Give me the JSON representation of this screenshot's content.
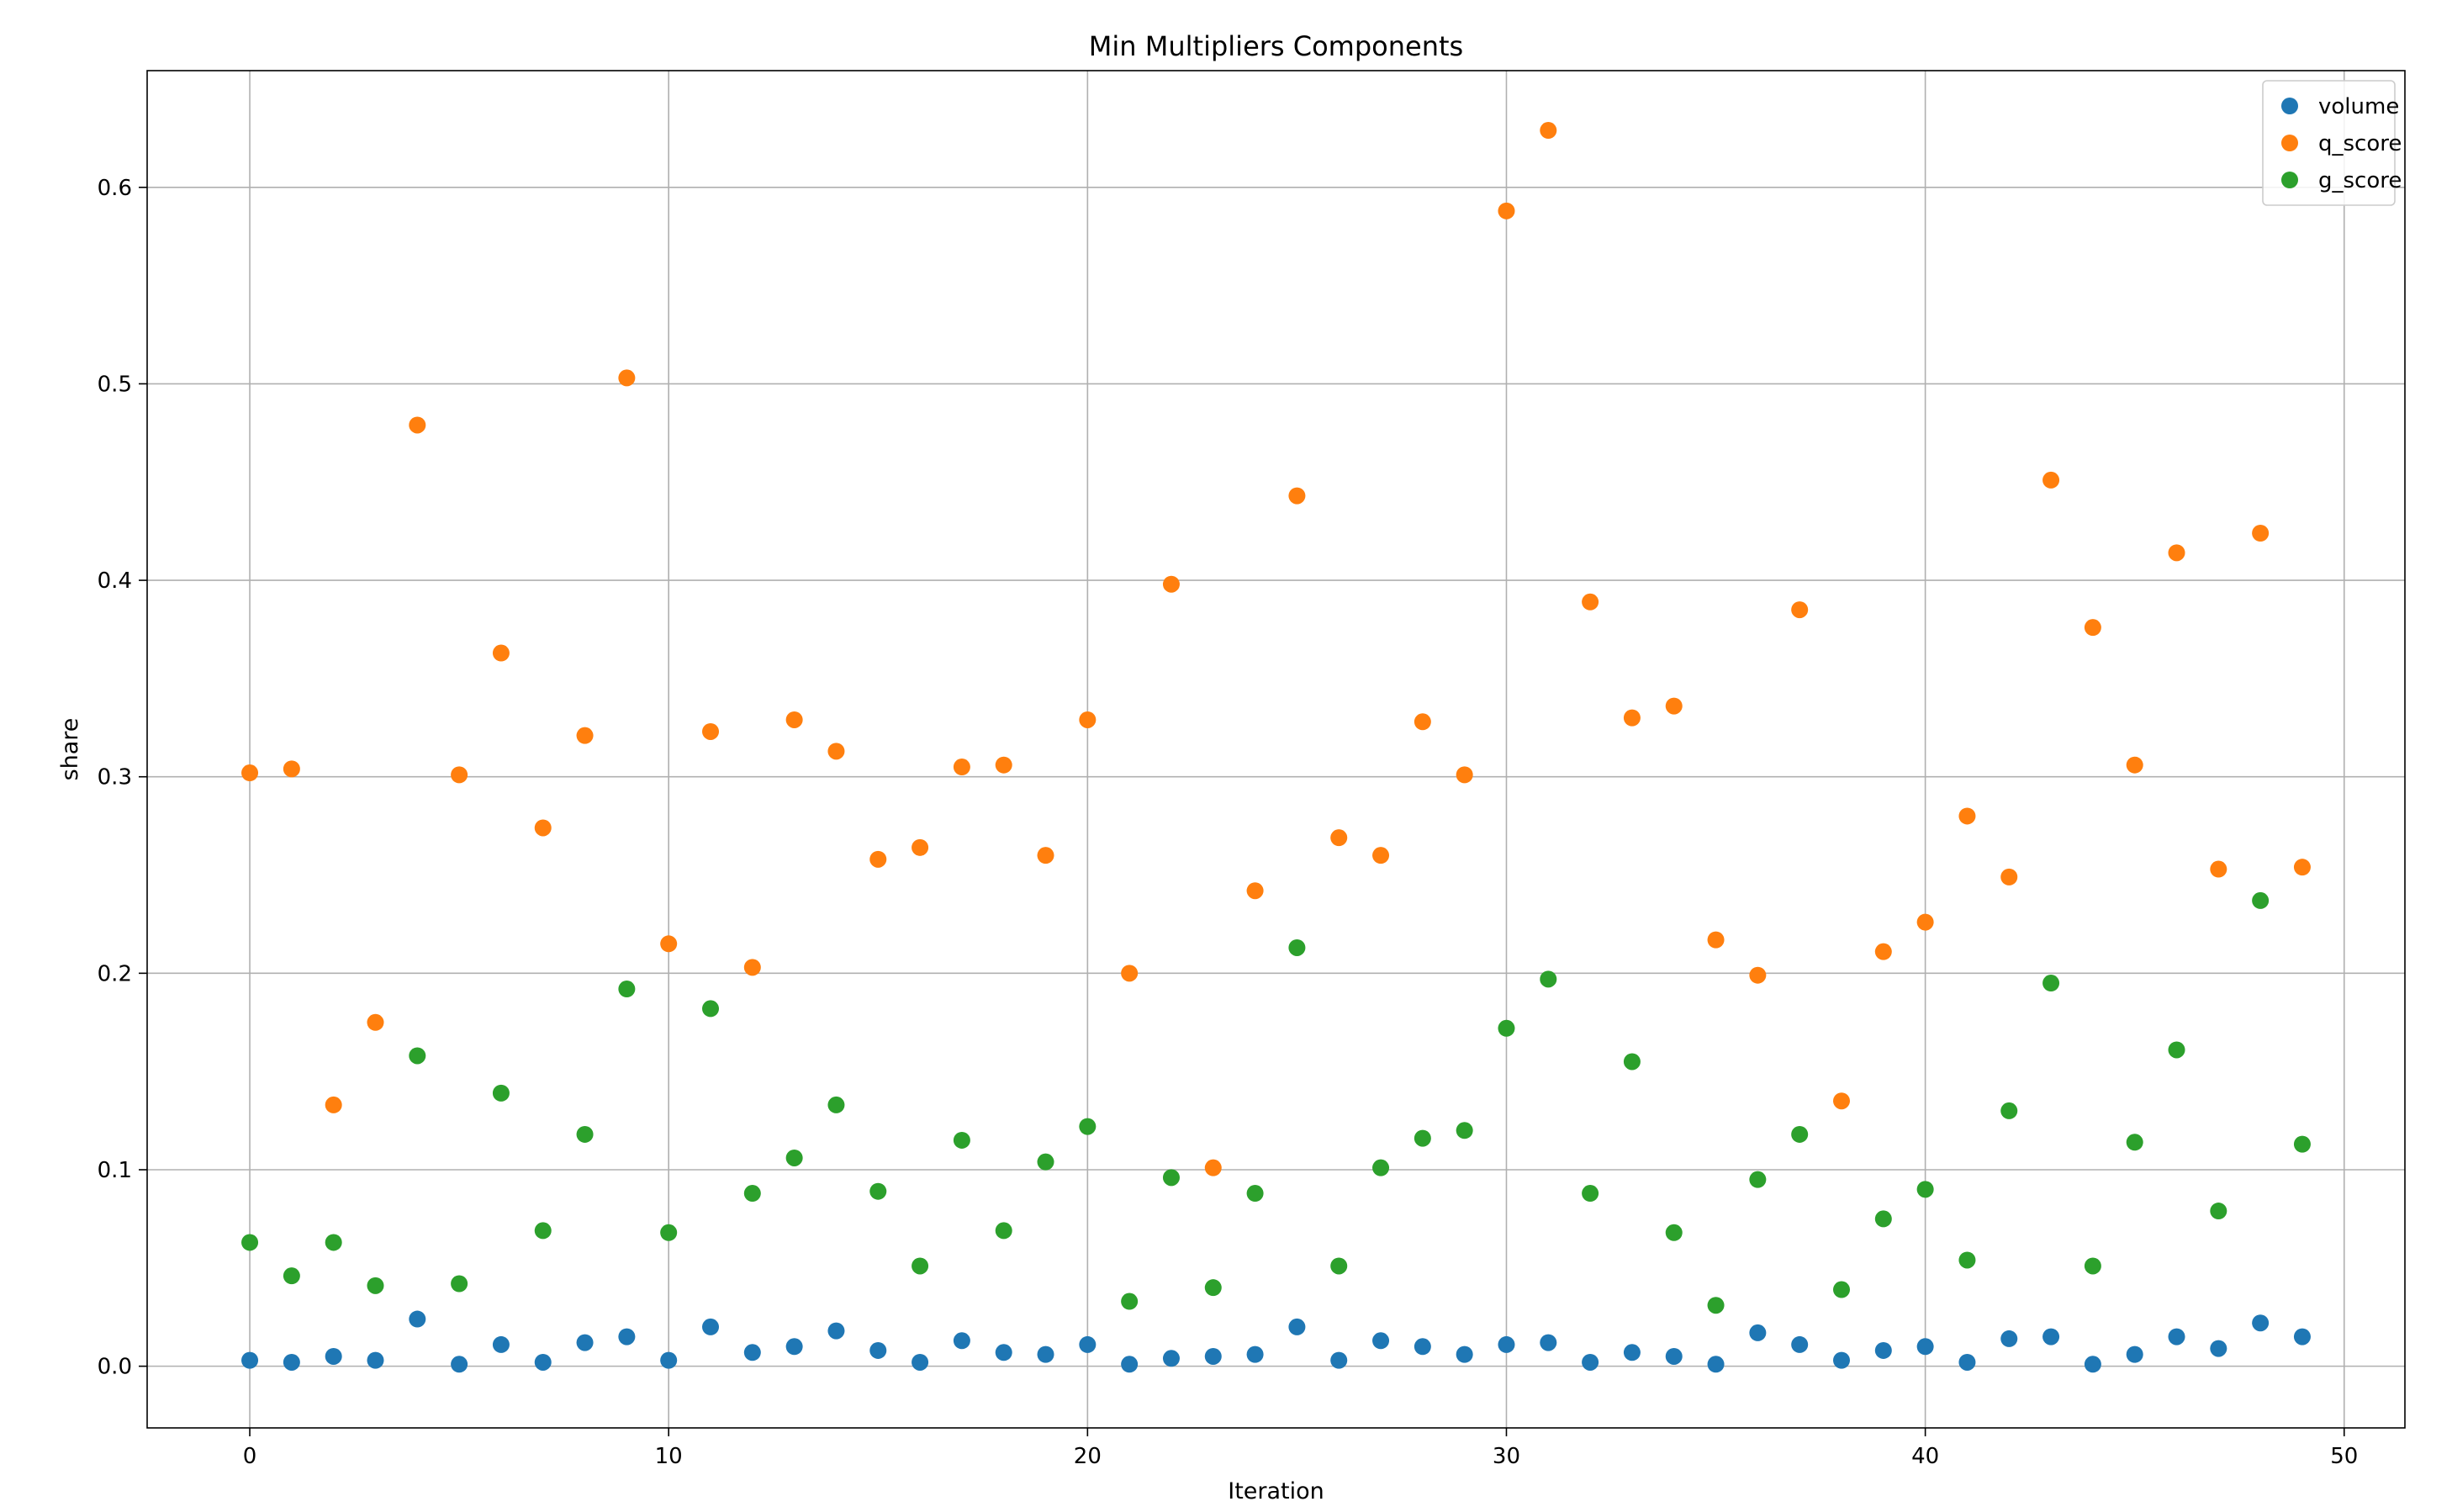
{
  "chart_data": {
    "type": "scatter",
    "title": "Min Multipliers Components",
    "xlabel": "Iteration",
    "ylabel": "share",
    "xlim": [
      -2.45,
      51.45
    ],
    "ylim": [
      -0.0314,
      0.6594
    ],
    "xticks": [
      0,
      10,
      20,
      30,
      40,
      50
    ],
    "yticks": [
      0.0,
      0.1,
      0.2,
      0.3,
      0.4,
      0.5,
      0.6
    ],
    "grid": true,
    "legend_position": "top-right",
    "x": [
      0,
      1,
      2,
      3,
      4,
      5,
      6,
      7,
      8,
      9,
      10,
      11,
      12,
      13,
      14,
      15,
      16,
      17,
      18,
      19,
      20,
      21,
      22,
      23,
      24,
      25,
      26,
      27,
      28,
      29,
      30,
      31,
      32,
      33,
      34,
      35,
      36,
      37,
      38,
      39,
      40,
      41,
      42,
      43,
      44,
      45,
      46,
      47,
      48,
      49
    ],
    "series": [
      {
        "name": "volume",
        "color": "#1f77b4",
        "values": [
          0.003,
          0.002,
          0.005,
          0.003,
          0.024,
          0.001,
          0.011,
          0.002,
          0.012,
          0.015,
          0.003,
          0.02,
          0.007,
          0.01,
          0.018,
          0.008,
          0.002,
          0.013,
          0.007,
          0.006,
          0.011,
          0.001,
          0.004,
          0.005,
          0.006,
          0.02,
          0.003,
          0.013,
          0.01,
          0.006,
          0.011,
          0.012,
          0.002,
          0.007,
          0.005,
          0.001,
          0.017,
          0.011,
          0.003,
          0.008,
          0.01,
          0.002,
          0.014,
          0.015,
          0.001,
          0.006,
          0.015,
          0.009,
          0.022,
          0.015
        ]
      },
      {
        "name": "q_score",
        "color": "#ff7f0e",
        "values": [
          0.302,
          0.304,
          0.133,
          0.175,
          0.479,
          0.301,
          0.363,
          0.274,
          0.321,
          0.503,
          0.215,
          0.323,
          0.203,
          0.329,
          0.313,
          0.258,
          0.264,
          0.305,
          0.306,
          0.26,
          0.329,
          0.2,
          0.398,
          0.101,
          0.242,
          0.443,
          0.269,
          0.26,
          0.328,
          0.301,
          0.588,
          0.629,
          0.389,
          0.33,
          0.336,
          0.217,
          0.199,
          0.385,
          0.135,
          0.211,
          0.226,
          0.28,
          0.249,
          0.451,
          0.376,
          0.306,
          0.414,
          0.253,
          0.424,
          0.254
        ]
      },
      {
        "name": "g_score",
        "color": "#2ca02c",
        "values": [
          0.063,
          0.046,
          0.063,
          0.041,
          0.158,
          0.042,
          0.139,
          0.069,
          0.118,
          0.192,
          0.068,
          0.182,
          0.088,
          0.106,
          0.133,
          0.089,
          0.051,
          0.115,
          0.069,
          0.104,
          0.122,
          0.033,
          0.096,
          0.04,
          0.088,
          0.213,
          0.051,
          0.101,
          0.116,
          0.12,
          0.172,
          0.197,
          0.088,
          0.155,
          0.068,
          0.031,
          0.095,
          0.118,
          0.039,
          0.075,
          0.09,
          0.054,
          0.13,
          0.195,
          0.051,
          0.114,
          0.161,
          0.079,
          0.237,
          0.113
        ]
      }
    ]
  }
}
